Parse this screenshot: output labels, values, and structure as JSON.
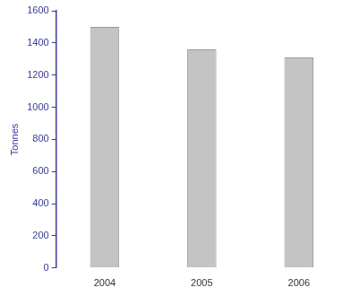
{
  "chart_data": {
    "type": "bar",
    "categories": [
      "2004",
      "2005",
      "2006"
    ],
    "values": [
      1500,
      1360,
      1310
    ],
    "color": "#c4c4c4",
    "y_label": "Tonnes",
    "ylim": [
      0,
      1600
    ],
    "yticks": [
      0,
      200,
      400,
      600,
      800,
      1000,
      1200,
      1400,
      1600
    ],
    "grid": false
  }
}
